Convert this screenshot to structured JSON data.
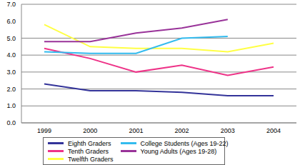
{
  "chart_data": {
    "type": "line",
    "categories": [
      "1999",
      "2000",
      "2001",
      "2002",
      "2003",
      "2004"
    ],
    "series": [
      {
        "name": "Eighth Graders",
        "color": "#333399",
        "values": [
          2.3,
          1.9,
          1.9,
          1.8,
          1.6,
          1.6
        ]
      },
      {
        "name": "Tenth Graders",
        "color": "#ee3388",
        "values": [
          4.4,
          3.8,
          3.0,
          3.4,
          2.8,
          3.3
        ]
      },
      {
        "name": "Twelfth Graders",
        "color": "#ffff44",
        "values": [
          5.8,
          4.5,
          4.4,
          4.4,
          4.2,
          4.7
        ]
      },
      {
        "name": "College Students (Ages 19-22)",
        "color": "#33bbee",
        "values": [
          4.2,
          4.1,
          4.1,
          5.0,
          5.1,
          null
        ]
      },
      {
        "name": "Young Adults (Ages 19-28)",
        "color": "#993399",
        "values": [
          4.8,
          4.8,
          5.3,
          5.6,
          6.1,
          null
        ]
      }
    ],
    "ylim": [
      0,
      7
    ],
    "yticks": [
      {
        "value": 0,
        "label": "0.0"
      },
      {
        "value": 1,
        "label": "1.0"
      },
      {
        "value": 2,
        "label": "2.0"
      },
      {
        "value": 3,
        "label": "3.0"
      },
      {
        "value": 4,
        "label": "4.0"
      },
      {
        "value": 5,
        "label": "5.0"
      },
      {
        "value": 6,
        "label": "6.0"
      },
      {
        "value": 7,
        "label": "7.0"
      }
    ],
    "grid": true,
    "legend": "bottom"
  }
}
